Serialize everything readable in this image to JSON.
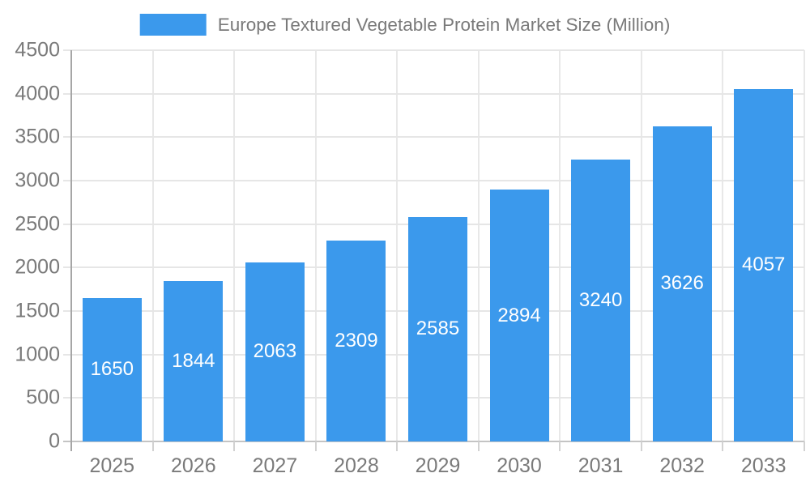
{
  "chart_data": {
    "type": "bar",
    "title": "Europe Textured Vegetable Protein Market Size (Million)",
    "legend_entries": [
      "Europe Textured Vegetable Protein Market Size (Million)"
    ],
    "legend_position": "top-center",
    "categories": [
      "2025",
      "2026",
      "2027",
      "2028",
      "2029",
      "2030",
      "2031",
      "2032",
      "2033"
    ],
    "values": [
      1650,
      1844,
      2063,
      2309,
      2585,
      2894,
      3240,
      3626,
      4057
    ],
    "value_labels": [
      "1650",
      "1844",
      "2063",
      "2309",
      "2585",
      "2894",
      "3240",
      "3626",
      "4057"
    ],
    "xlabel": "",
    "ylabel": "",
    "ylim": [
      0,
      4500
    ],
    "ytick_step": 500,
    "yticks": [
      0,
      500,
      1000,
      1500,
      2000,
      2500,
      3000,
      3500,
      4000,
      4500
    ],
    "grid": true,
    "colors": {
      "bar": "#3b99ec",
      "value_label": "#ffffff",
      "axis_text": "#7a7a7a",
      "grid_line": "#e6e6e6",
      "axis_line": "#a6a6a6"
    }
  }
}
